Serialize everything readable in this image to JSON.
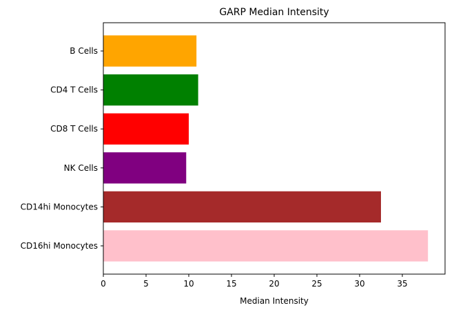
{
  "chart_data": {
    "type": "bar",
    "orientation": "horizontal",
    "title": "GARP Median Intensity",
    "xlabel": "Median Intensity",
    "ylabel": "",
    "xlim": [
      0,
      40
    ],
    "xticks": [
      0,
      5,
      10,
      15,
      20,
      25,
      30,
      35
    ],
    "grid": false,
    "categories": [
      "B Cells",
      "CD4 T Cells",
      "CD8 T Cells",
      "NK Cells",
      "CD14hi Monocytes",
      "CD16hi Monocytes"
    ],
    "values": [
      10.9,
      11.1,
      10.0,
      9.7,
      32.5,
      38.0
    ],
    "colors": [
      "#ffa500",
      "#008000",
      "#ff0000",
      "#800080",
      "#a52a2a",
      "#ffc0cb"
    ]
  }
}
